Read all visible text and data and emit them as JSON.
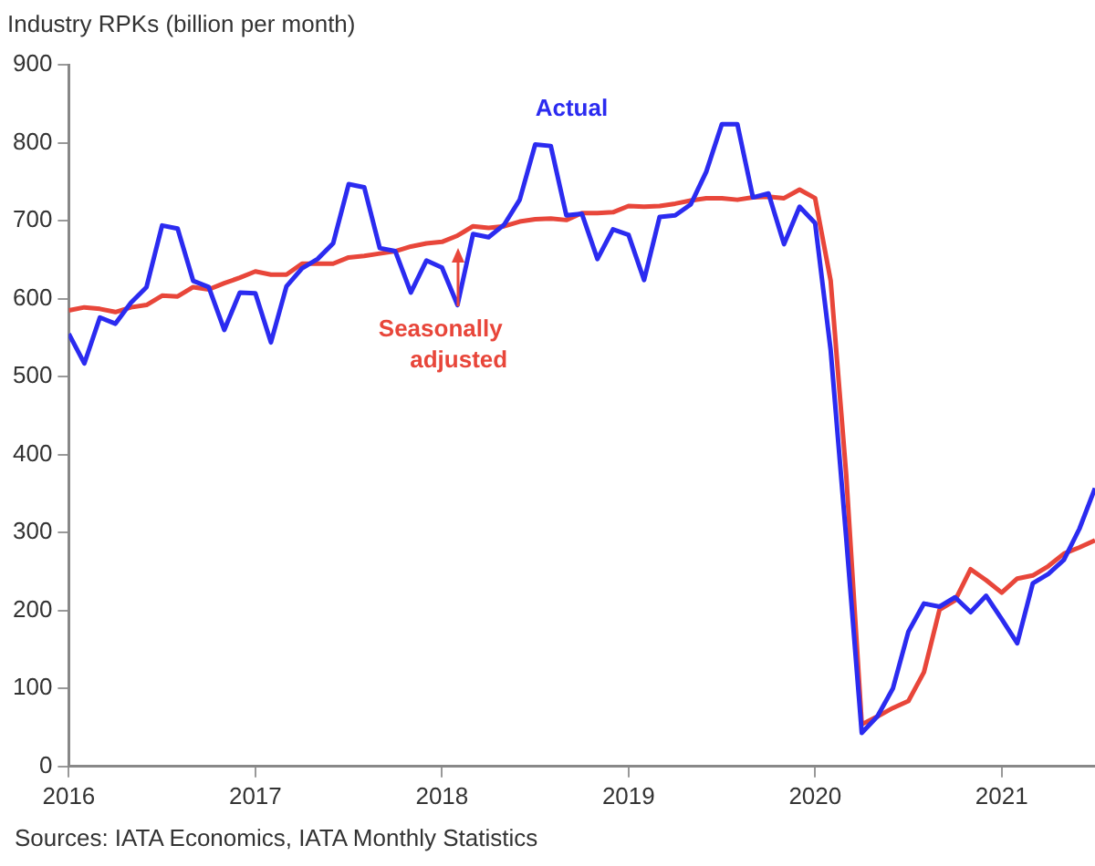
{
  "chart_data": {
    "type": "line",
    "title": "Industry RPKs (billion per month)",
    "x": [
      "2016-01",
      "2016-02",
      "2016-03",
      "2016-04",
      "2016-05",
      "2016-06",
      "2016-07",
      "2016-08",
      "2016-09",
      "2016-10",
      "2016-11",
      "2016-12",
      "2017-01",
      "2017-02",
      "2017-03",
      "2017-04",
      "2017-05",
      "2017-06",
      "2017-07",
      "2017-08",
      "2017-09",
      "2017-10",
      "2017-11",
      "2017-12",
      "2018-01",
      "2018-02",
      "2018-03",
      "2018-04",
      "2018-05",
      "2018-06",
      "2018-07",
      "2018-08",
      "2018-09",
      "2018-10",
      "2018-11",
      "2018-12",
      "2019-01",
      "2019-02",
      "2019-03",
      "2019-04",
      "2019-05",
      "2019-06",
      "2019-07",
      "2019-08",
      "2019-09",
      "2019-10",
      "2019-11",
      "2019-12",
      "2020-01",
      "2020-02",
      "2020-03",
      "2020-04",
      "2020-05",
      "2020-06",
      "2020-07",
      "2020-08",
      "2020-09",
      "2020-10",
      "2020-11",
      "2020-12",
      "2021-01",
      "2021-02",
      "2021-03",
      "2021-04",
      "2021-05",
      "2021-06",
      "2021-07"
    ],
    "series": [
      {
        "color": "#2b2bf0",
        "values": [
          555,
          517,
          576,
          568,
          595,
          615,
          694,
          690,
          623,
          615,
          560,
          608,
          607,
          544,
          616,
          639,
          651,
          671,
          747,
          743,
          665,
          661,
          608,
          649,
          640,
          592,
          683,
          679,
          695,
          727,
          798,
          796,
          707,
          709,
          651,
          689,
          682,
          624,
          705,
          707,
          721,
          763,
          824,
          824,
          730,
          735,
          670,
          718,
          697,
          534,
          293,
          43,
          64,
          100,
          173,
          209,
          205,
          217,
          198,
          219,
          189,
          158,
          235,
          247,
          265,
          305,
          357
        ]
      },
      {
        "color": "#e8463a",
        "values": [
          585,
          589,
          587,
          583,
          589,
          592,
          604,
          603,
          615,
          612,
          620,
          627,
          635,
          631,
          631,
          645,
          645,
          645,
          653,
          655,
          658,
          661,
          667,
          671,
          673,
          681,
          693,
          691,
          693,
          699,
          702,
          703,
          701,
          710,
          710,
          711,
          719,
          718,
          719,
          722,
          726,
          729,
          729,
          727,
          730,
          731,
          729,
          740,
          729,
          623,
          374,
          54,
          64,
          75,
          84,
          121,
          201,
          213,
          253,
          239,
          223,
          241,
          245,
          257,
          273,
          281,
          290
        ]
      }
    ],
    "xlim": [
      "2016-01",
      "2021-07"
    ],
    "xticks": [
      "2016",
      "2017",
      "2018",
      "2019",
      "2020",
      "2021"
    ],
    "ylim": [
      0,
      900
    ],
    "yticks": [
      0,
      100,
      200,
      300,
      400,
      500,
      600,
      700,
      800,
      900
    ],
    "grid": false,
    "legend": false,
    "marker": "none",
    "line_style": "solid",
    "annotations": [
      "Actual",
      "Seasonally adjusted",
      "Sources: IATA Economics, IATA Monthly Statistics"
    ]
  }
}
